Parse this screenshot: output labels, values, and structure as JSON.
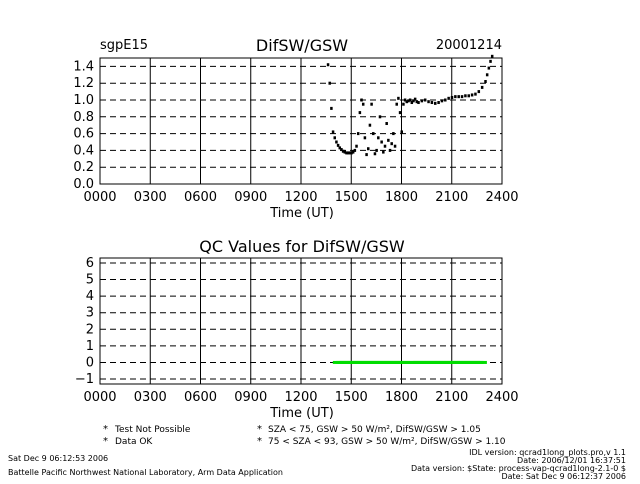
{
  "top_chart": {
    "site": "sgpE15",
    "title": "DifSW/GSW",
    "date": "20001214",
    "xlabel": "Time (UT)",
    "x_ticks": [
      "0000",
      "0300",
      "0600",
      "0900",
      "1200",
      "1500",
      "1800",
      "2100",
      "2400"
    ],
    "y_ticks": [
      "0.0",
      "0.2",
      "0.4",
      "0.6",
      "0.8",
      "1.0",
      "1.2",
      "1.4"
    ]
  },
  "bottom_chart": {
    "title": "QC Values for DifSW/GSW",
    "xlabel": "Time (UT)",
    "x_ticks": [
      "0000",
      "0300",
      "0600",
      "0900",
      "1200",
      "1500",
      "1800",
      "2100",
      "2400"
    ],
    "y_ticks": [
      "−1",
      "0",
      "1",
      "2",
      "3",
      "4",
      "5",
      "6"
    ]
  },
  "legend": [
    {
      "symbol": "*",
      "color": "#000000",
      "text": "Test Not Possible"
    },
    {
      "symbol": "*",
      "color": "#00cc00",
      "text": "Data OK"
    },
    {
      "symbol": "*",
      "color": "#ff9900",
      "text": "SZA < 75, GSW > 50 W/m², DifSW/GSW > 1.05"
    },
    {
      "symbol": "*",
      "color": "#ff0000",
      "text": "75 < SZA < 93, GSW > 50 W/m², DifSW/GSW > 1.10"
    }
  ],
  "footer": {
    "left_date": "Sat Dec  9 06:12:53 2006",
    "left_lab": "Battelle Pacific Northwest National Laboratory, Arm Data Application",
    "right_lines": [
      "IDL version: qcrad1long_plots.pro,v 1.1",
      "Date: 2006/12/01 16:37:51",
      "Data version: $State: process-vap-qcrad1long-2.1-0 $",
      "Date: Sat Dec  9 06:12:37 2006"
    ]
  },
  "chart_data": [
    {
      "type": "scatter",
      "title": "DifSW/GSW",
      "xlabel": "Time (UT)",
      "ylabel": "",
      "xlim": [
        0,
        2400
      ],
      "ylim": [
        0,
        1.5
      ],
      "grid": true,
      "series": [
        {
          "x": [
            1360,
            1370,
            1380,
            1390,
            1400,
            1410,
            1420,
            1430,
            1440,
            1450,
            1460,
            1470,
            1480,
            1490,
            1500,
            1510,
            1520,
            1530,
            1540,
            1550,
            1560,
            1570,
            1580,
            1590,
            1600,
            1610,
            1620,
            1630,
            1640,
            1650,
            1660,
            1670,
            1680,
            1690,
            1700,
            1710,
            1720,
            1730,
            1740,
            1750,
            1760,
            1770,
            1780,
            1790,
            1800,
            1810,
            1820,
            1830,
            1840,
            1850,
            1860,
            1870,
            1880,
            1890,
            1900,
            1920,
            1940,
            1960,
            1980,
            2000,
            2020,
            2040,
            2060,
            2080,
            2100,
            2120,
            2140,
            2160,
            2180,
            2200,
            2220,
            2240,
            2260,
            2280,
            2300,
            2310,
            2320,
            2330,
            2340
          ],
          "y": [
            1.42,
            1.2,
            0.9,
            0.62,
            0.55,
            0.5,
            0.46,
            0.43,
            0.41,
            0.39,
            0.38,
            0.37,
            0.37,
            0.37,
            0.37,
            0.38,
            0.4,
            0.45,
            0.6,
            0.85,
            1.0,
            0.95,
            0.55,
            0.35,
            0.42,
            0.7,
            0.95,
            0.6,
            0.36,
            0.4,
            0.55,
            0.8,
            0.5,
            0.38,
            0.45,
            0.72,
            0.52,
            0.4,
            0.48,
            0.6,
            0.45,
            0.95,
            1.02,
            0.85,
            0.62,
            0.95,
            1.0,
            0.98,
            0.99,
            1.0,
            0.97,
            0.99,
            1.01,
            0.98,
            0.97,
            0.99,
            1.0,
            0.98,
            0.97,
            0.96,
            0.97,
            0.99,
            1.0,
            1.02,
            1.03,
            1.04,
            1.04,
            1.04,
            1.05,
            1.05,
            1.06,
            1.07,
            1.1,
            1.15,
            1.22,
            1.3,
            1.38,
            1.46,
            1.52
          ]
        }
      ]
    },
    {
      "type": "scatter",
      "title": "QC Values for DifSW/GSW",
      "xlabel": "Time (UT)",
      "ylabel": "",
      "xlim": [
        0,
        2400
      ],
      "ylim": [
        -1.3,
        6.3
      ],
      "grid": true,
      "series": [
        {
          "x": [
            1420,
            1440,
            1460,
            1480,
            1500,
            1520,
            1540,
            1560,
            1580,
            1600,
            1620,
            1640,
            1660,
            1680,
            1700,
            1720,
            1740,
            1760,
            1780,
            1800,
            1820,
            1860,
            1880,
            1900,
            1920,
            1940,
            1960,
            1980,
            2000,
            2020,
            2040,
            2060,
            2080,
            2100,
            2120,
            2140,
            2160,
            2180,
            2200,
            2220,
            2240,
            2260,
            2280
          ],
          "y": [
            0,
            0,
            0,
            0,
            0,
            0,
            0,
            0,
            0,
            0,
            0,
            0,
            0,
            0,
            0,
            0,
            0,
            0,
            0,
            0,
            0,
            0,
            0,
            0,
            0,
            0,
            0,
            0,
            0,
            0,
            0,
            0,
            0,
            0,
            0,
            0,
            0,
            0,
            0,
            0,
            0,
            0,
            0
          ]
        }
      ]
    }
  ]
}
